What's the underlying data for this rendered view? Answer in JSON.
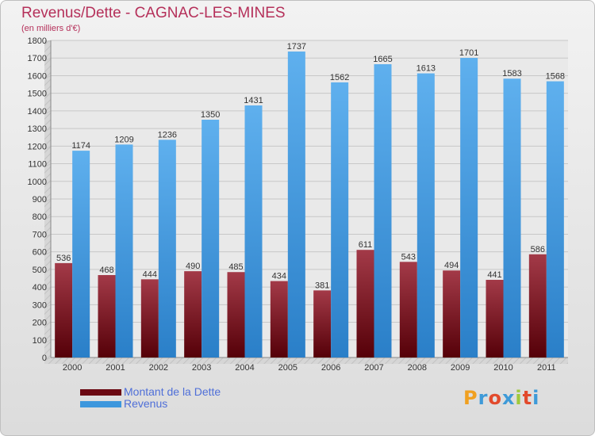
{
  "header": {
    "title": "Revenus/Dette - CAGNAC-LES-MINES",
    "subtitle": "(en milliers d'€)"
  },
  "logo": {
    "letters": [
      "P",
      "r",
      "o",
      "x",
      "i",
      "t",
      "i"
    ],
    "colors": [
      "#f0a020",
      "#3e9ad8",
      "#e24a2c",
      "#3e9ad8",
      "#9fc93c",
      "#e24a2c",
      "#3e9ad8"
    ]
  },
  "colors": {
    "dette": "#7a1020",
    "revenus": "#3d97dd"
  },
  "chart_data": {
    "type": "bar",
    "title": "Revenus/Dette - CAGNAC-LES-MINES",
    "subtitle": "(en milliers d'€)",
    "xlabel": "",
    "ylabel": "",
    "categories": [
      "2000",
      "2001",
      "2002",
      "2003",
      "2004",
      "2005",
      "2006",
      "2007",
      "2008",
      "2009",
      "2010",
      "2011"
    ],
    "series": [
      {
        "name": "Montant de la Dette",
        "values": [
          536,
          468,
          444,
          490,
          485,
          434,
          381,
          611,
          543,
          494,
          441,
          586
        ]
      },
      {
        "name": "Revenus",
        "values": [
          1174,
          1209,
          1236,
          1350,
          1431,
          1737,
          1562,
          1665,
          1613,
          1701,
          1583,
          1568
        ]
      }
    ],
    "ylim": [
      0,
      1800
    ],
    "yticks": [
      0,
      100,
      200,
      300,
      400,
      500,
      600,
      700,
      800,
      900,
      1000,
      1100,
      1200,
      1300,
      1400,
      1500,
      1600,
      1700,
      1800
    ],
    "grid": true,
    "legend_position": "bottom-left",
    "data_labels": true
  }
}
